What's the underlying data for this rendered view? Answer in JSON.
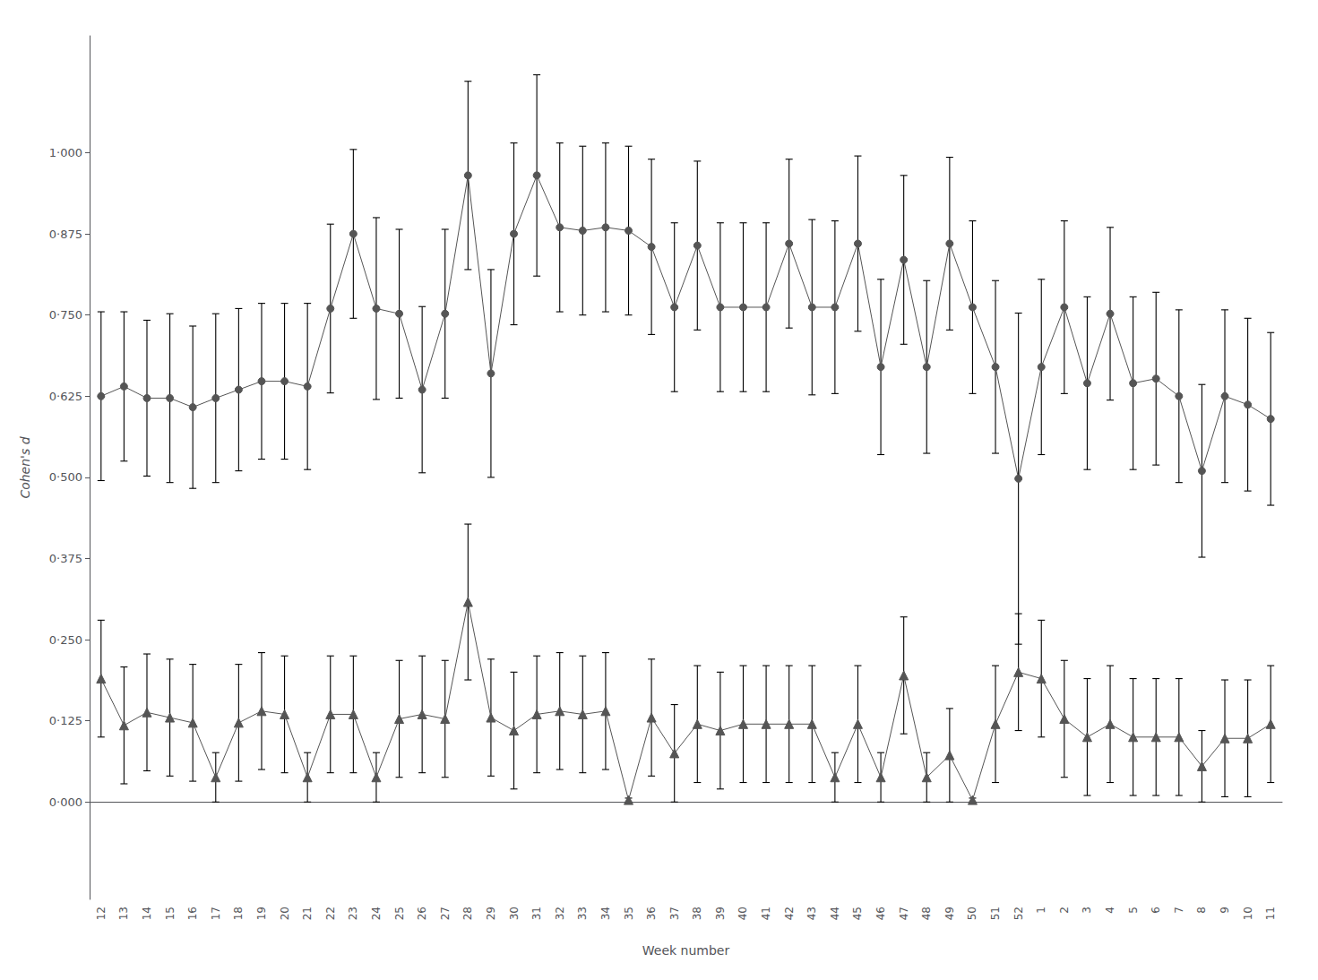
{
  "chart_data": {
    "type": "line",
    "xlabel": "Week number",
    "ylabel": "Cohen's d",
    "categories": [
      "12",
      "13",
      "14",
      "15",
      "16",
      "17",
      "18",
      "19",
      "20",
      "21",
      "22",
      "23",
      "24",
      "25",
      "26",
      "27",
      "28",
      "29",
      "30",
      "31",
      "32",
      "33",
      "34",
      "35",
      "36",
      "37",
      "38",
      "39",
      "40",
      "41",
      "42",
      "43",
      "44",
      "45",
      "46",
      "47",
      "48",
      "49",
      "50",
      "51",
      "52",
      "1",
      "2",
      "3",
      "4",
      "5",
      "6",
      "7",
      "8",
      "9",
      "10",
      "11"
    ],
    "series": [
      {
        "marker": "circle",
        "line_style": "solid",
        "color": "#555555",
        "values": [
          0.625,
          0.64,
          0.622,
          0.622,
          0.608,
          0.622,
          0.635,
          0.648,
          0.648,
          0.64,
          0.76,
          0.875,
          0.76,
          0.752,
          0.635,
          0.752,
          0.965,
          0.66,
          0.875,
          0.965,
          0.885,
          0.88,
          0.885,
          0.88,
          0.855,
          0.762,
          0.857,
          0.762,
          0.762,
          0.762,
          0.86,
          0.762,
          0.762,
          0.86,
          0.67,
          0.835,
          0.67,
          0.86,
          0.762,
          0.67,
          0.498,
          0.67,
          0.762,
          0.645,
          0.752,
          0.645,
          0.652,
          0.625,
          0.51,
          0.625,
          0.612,
          0.59
        ],
        "yerr": [
          0.13,
          0.115,
          0.12,
          0.13,
          0.125,
          0.13,
          0.125,
          0.12,
          0.12,
          0.128,
          0.13,
          0.13,
          0.14,
          0.13,
          0.128,
          0.13,
          0.145,
          0.16,
          0.14,
          0.155,
          0.13,
          0.13,
          0.13,
          0.13,
          0.135,
          0.13,
          0.13,
          0.13,
          0.13,
          0.13,
          0.13,
          0.135,
          0.133,
          0.135,
          0.135,
          0.13,
          0.133,
          0.133,
          0.133,
          0.133,
          0.255,
          0.135,
          0.133,
          0.133,
          0.133,
          0.133,
          0.133,
          0.133,
          0.133,
          0.133,
          0.133,
          0.133
        ]
      },
      {
        "marker": "triangle",
        "line_style": "solid",
        "color": "#555555",
        "values": [
          0.19,
          0.118,
          0.138,
          0.13,
          0.122,
          0.038,
          0.122,
          0.14,
          0.135,
          0.038,
          0.135,
          0.135,
          0.038,
          0.128,
          0.135,
          0.128,
          0.308,
          0.13,
          0.11,
          0.135,
          0.14,
          0.135,
          0.14,
          0.003,
          0.13,
          0.075,
          0.12,
          0.11,
          0.12,
          0.12,
          0.12,
          0.12,
          0.038,
          0.12,
          0.038,
          0.195,
          0.038,
          0.072,
          0.003,
          0.12,
          0.2,
          0.19,
          0.128,
          0.1,
          0.12,
          0.1,
          0.1,
          0.1,
          0.055,
          0.098,
          0.098,
          0.12
        ],
        "yerr": [
          0.09,
          0.09,
          0.09,
          0.09,
          0.09,
          0.038,
          0.09,
          0.09,
          0.09,
          0.038,
          0.09,
          0.09,
          0.038,
          0.09,
          0.09,
          0.09,
          0.12,
          0.09,
          0.09,
          0.09,
          0.09,
          0.09,
          0.09,
          0.003,
          0.09,
          0.075,
          0.09,
          0.09,
          0.09,
          0.09,
          0.09,
          0.09,
          0.038,
          0.09,
          0.038,
          0.09,
          0.038,
          0.072,
          0.003,
          0.09,
          0.09,
          0.09,
          0.09,
          0.09,
          0.09,
          0.09,
          0.09,
          0.09,
          0.055,
          0.09,
          0.09,
          0.09
        ]
      }
    ],
    "ylim": [
      -0.15,
      1.18
    ],
    "yticks": [
      {
        "value": 0.0,
        "label": "0·000"
      },
      {
        "value": 0.125,
        "label": "0·125"
      },
      {
        "value": 0.25,
        "label": "0·250"
      },
      {
        "value": 0.375,
        "label": "0·375"
      },
      {
        "value": 0.5,
        "label": "0·500"
      },
      {
        "value": 0.625,
        "label": "0·625"
      },
      {
        "value": 0.75,
        "label": "0·750"
      },
      {
        "value": 0.875,
        "label": "0·875"
      },
      {
        "value": 1.0,
        "label": "1·000"
      }
    ],
    "grid": false
  }
}
